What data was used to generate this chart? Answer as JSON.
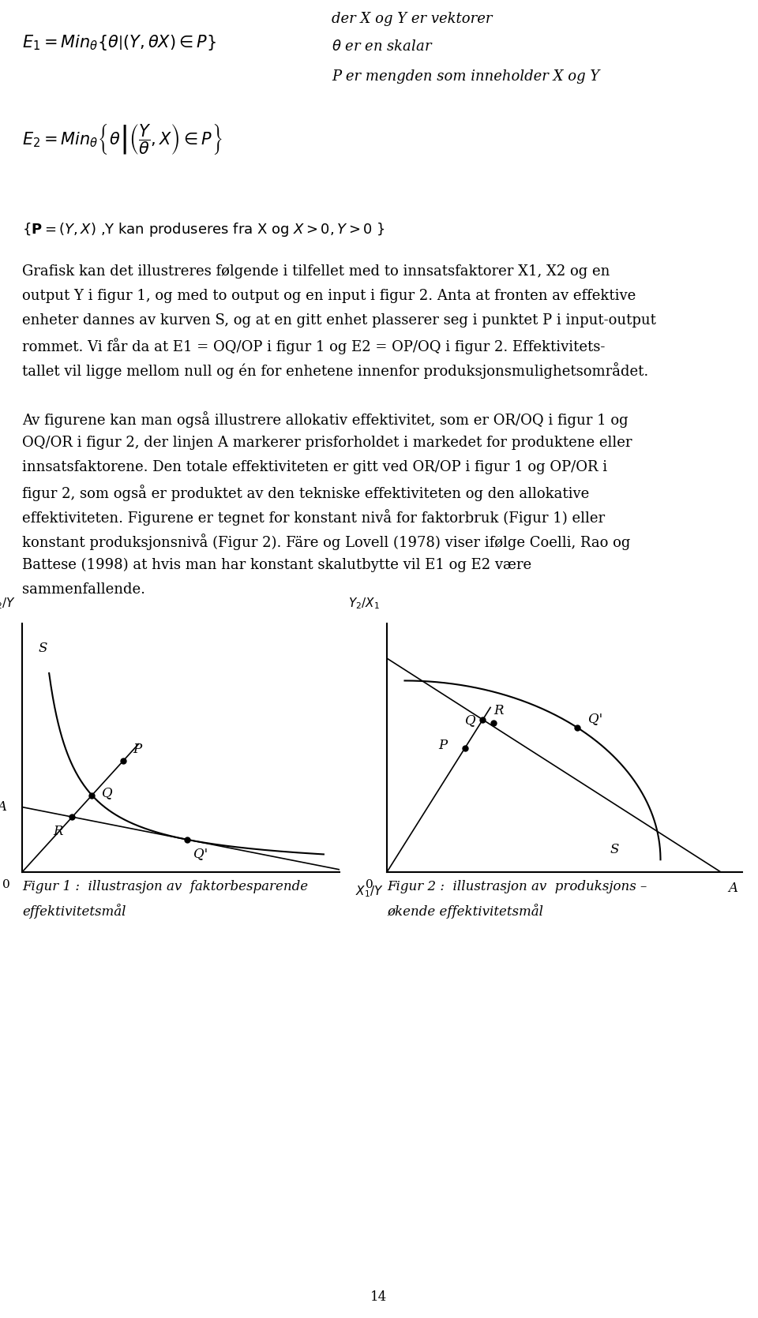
{
  "bg_color": "#ffffff",
  "text_color": "#000000",
  "fig_width": 9.6,
  "fig_height": 16.7,
  "page_number": "14",
  "fig1_caption_line1": "Figur 1 :  illustrasjon av  faktorbesparende",
  "fig1_caption_line2": "effektivitetsmål",
  "fig2_caption_line1": "Figur 2 :  illustrasjon av  produksjons –",
  "fig2_caption_line2": "økende effektivitetsmål",
  "body_lines": [
    "Grafisk kan det illustreres følgende i tilfellet med to innsatsfaktorer X1, X2 og en",
    "output Y i figur 1, og med to output og en input i figur 2. Anta at fronten av effektive",
    "enheter dannes av kurven S, og at en gitt enhet plasserer seg i punktet P i input-output",
    "rommet. Vi får da at E1 = OQ/OP i figur 1 og E2 = OP/OQ i figur 2. Effektivitets-",
    "tallet vil ligge mellom null og én for enhetene innenfor produksjonsmulighetsområdet.",
    "",
    "Av figurene kan man også illustrere allokativ effektivitet, som er OR/OQ i figur 1 og",
    "OQ/OR i figur 2, der linjen A markerer prisforholdet i markedet for produktene eller",
    "innsatsfaktorene. Den totale effektiviteten er gitt ved OR/OP i figur 1 og OP/OR i",
    "figur 2, som også er produktet av den tekniske effektiviteten og den allokative",
    "effektiviteten. Figurene er tegnet for konstant nivå for faktorbruk (Figur 1) eller",
    "konstant produksjonsnivå (Figur 2). Färe og Lovell (1978) viser ifølge Coelli, Rao og",
    "Battese (1998) at hvis man har konstant skalutbytte vil E1 og E2 være",
    "sammenfallende."
  ]
}
